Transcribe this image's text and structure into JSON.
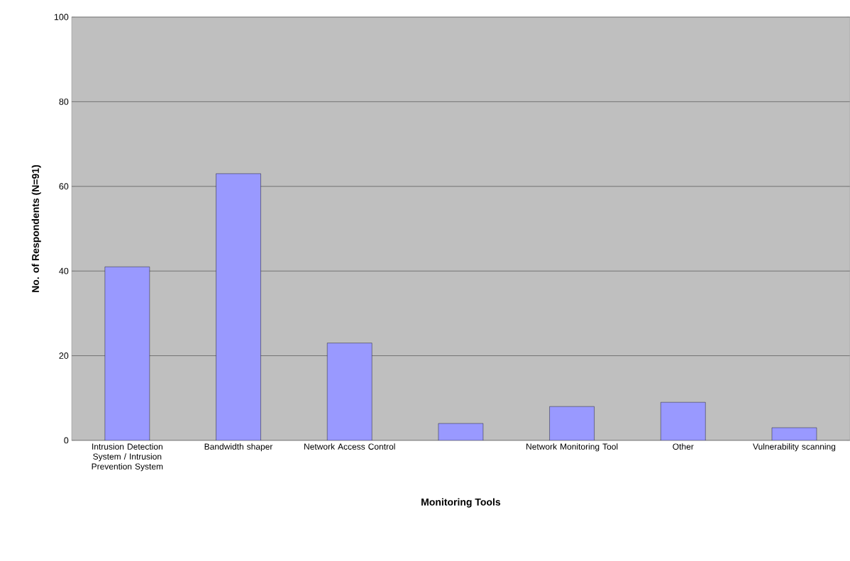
{
  "chart_data": {
    "type": "bar",
    "xlabel": "Monitoring Tools",
    "ylabel": "No. of Respondents (N=91)",
    "categories": [
      "Intrusion Detection System / Intrusion Prevention System",
      "Bandwidth shaper",
      "Network Access Control",
      null,
      "Network Monitoring Tool",
      "Other",
      "Vulnerability scanning"
    ],
    "values": [
      41,
      63,
      23,
      4,
      8,
      9,
      3
    ],
    "color": "#9999ff",
    "ylim": [
      0,
      100
    ],
    "yticks": [
      0,
      20,
      40,
      60,
      80,
      100
    ],
    "grid": "y"
  }
}
